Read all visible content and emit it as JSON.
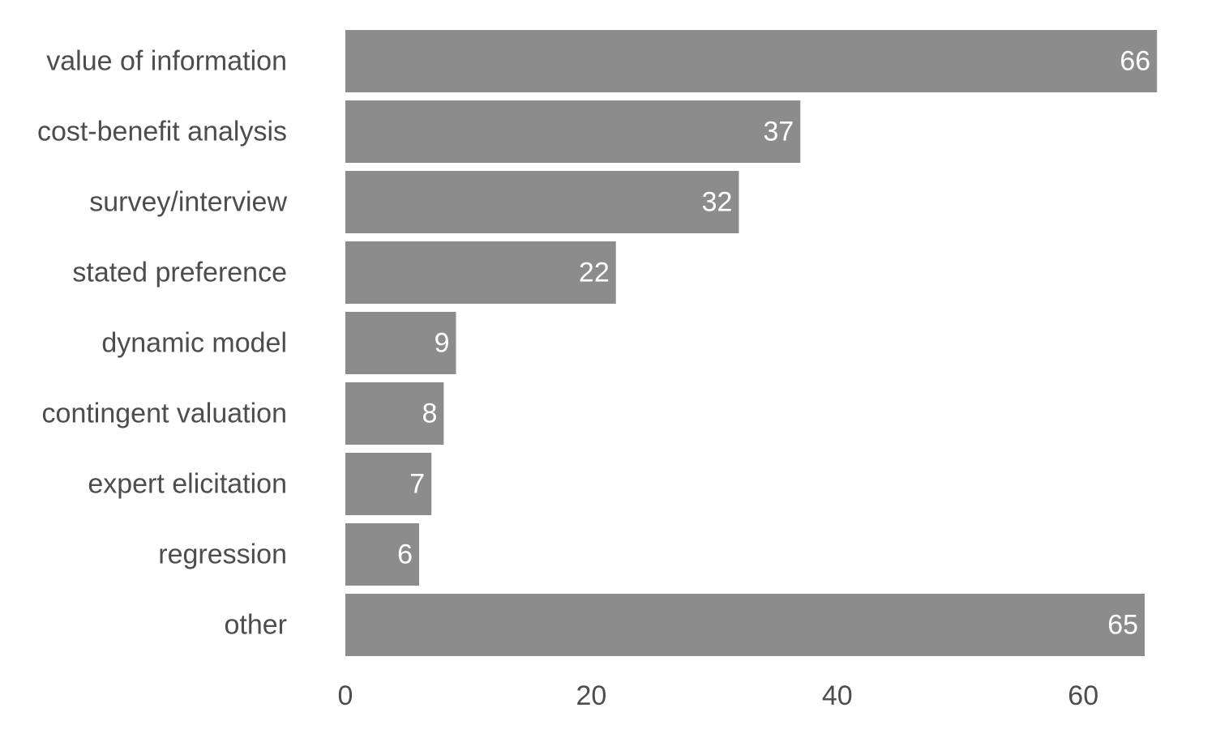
{
  "chart_data": {
    "type": "bar",
    "orientation": "horizontal",
    "categories": [
      "value of information",
      "cost-benefit analysis",
      "survey/interview",
      "stated preference",
      "dynamic model",
      "contingent valuation",
      "expert elicitation",
      "regression",
      "other"
    ],
    "values": [
      66,
      37,
      32,
      22,
      9,
      8,
      7,
      6,
      65
    ],
    "data_labels": [
      "66",
      "37",
      "32",
      "22",
      "9",
      "8",
      "7",
      "6",
      "65"
    ],
    "xlim": [
      0,
      66
    ],
    "xticks": [
      0,
      20,
      40,
      60
    ],
    "xtick_labels": [
      "0",
      "20",
      "40",
      "60"
    ],
    "grid": false,
    "legend": "none",
    "colors": {
      "bar": "#8c8c8c",
      "value_label": "#ffffff",
      "axis_text": "#4d4d4d",
      "background": "#ffffff"
    }
  }
}
